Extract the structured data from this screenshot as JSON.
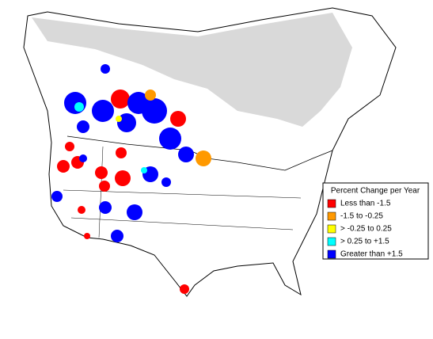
{
  "legend": {
    "title": "Percent Change per Year",
    "items": [
      {
        "label": "Less than -1.5",
        "color": "#ff0000"
      },
      {
        "label": "-1.5 to -0.25",
        "color": "#ff9900"
      },
      {
        "label": "> -0.25 to 0.25",
        "color": "#ffff00"
      },
      {
        "label": "> 0.25 to +1.5",
        "color": "#00ffff"
      },
      {
        "label": "Greater than +1.5",
        "color": "#0000ff"
      }
    ]
  }
}
